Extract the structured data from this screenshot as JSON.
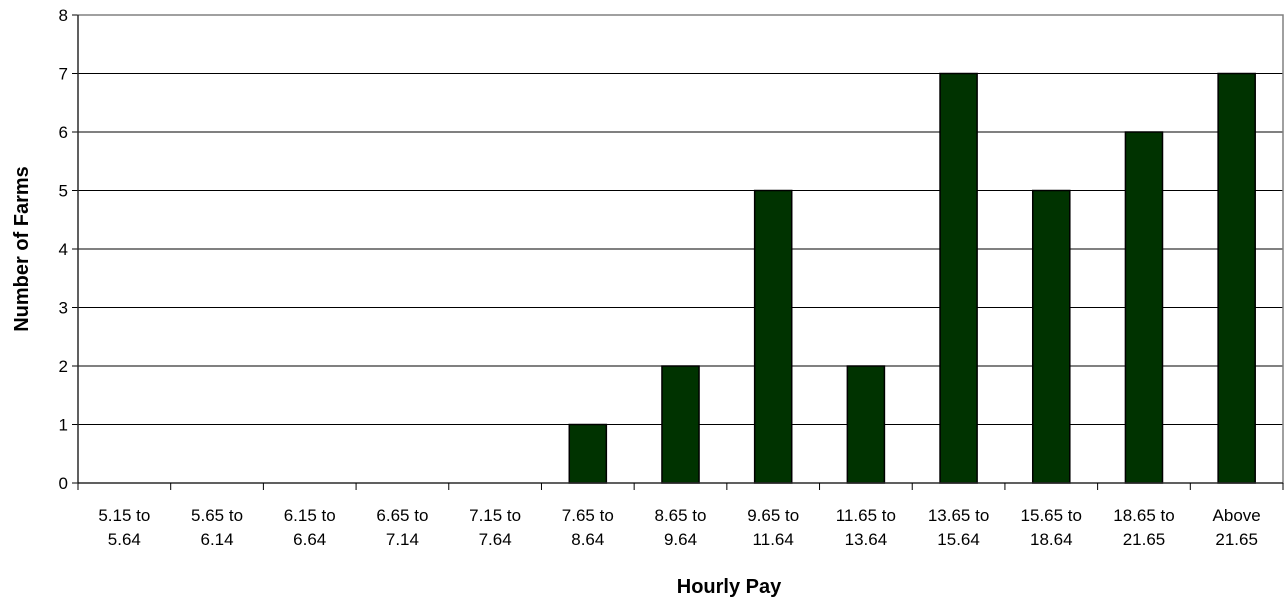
{
  "chart_data": {
    "type": "bar",
    "title": "",
    "xlabel": "Hourly Pay",
    "ylabel": "Number of Farms",
    "ylim": [
      0,
      8
    ],
    "ytick_step": 1,
    "grid": "horizontal",
    "legend": "none",
    "categories": [
      [
        "5.15 to",
        "5.64"
      ],
      [
        "5.65 to",
        "6.14"
      ],
      [
        "6.15 to",
        "6.64"
      ],
      [
        "6.65 to",
        "7.14"
      ],
      [
        "7.15 to",
        "7.64"
      ],
      [
        "7.65 to",
        "8.64"
      ],
      [
        "8.65 to",
        "9.64"
      ],
      [
        "9.65 to",
        "11.64"
      ],
      [
        "11.65 to",
        "13.64"
      ],
      [
        "13.65 to",
        "15.64"
      ],
      [
        "15.65 to",
        "18.64"
      ],
      [
        "18.65 to",
        "21.65"
      ],
      [
        "Above",
        "21.65"
      ]
    ],
    "values": [
      0,
      0,
      0,
      0,
      0,
      1,
      2,
      5,
      2,
      7,
      5,
      6,
      7
    ],
    "bar_color": "#003300"
  }
}
